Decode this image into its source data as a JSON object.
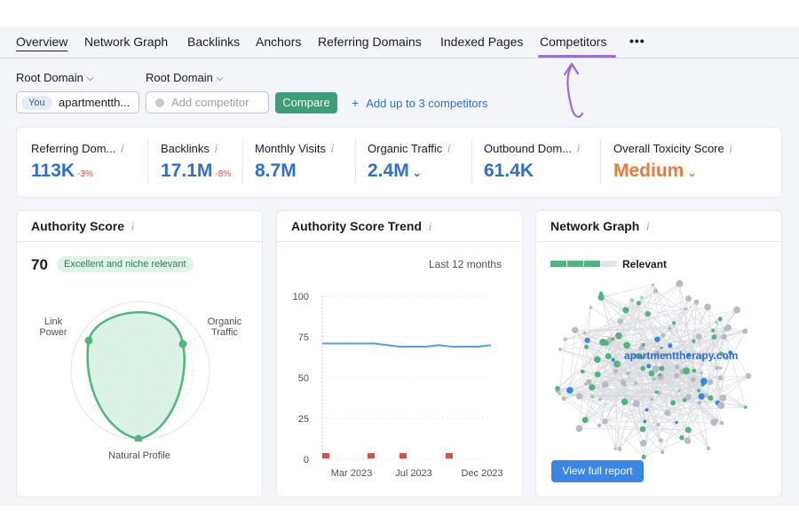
{
  "tabs": [
    "Overview",
    "Network Graph",
    "Backlinks",
    "Anchors",
    "Referring Domains",
    "Indexed Pages",
    "Competitors"
  ],
  "more_label": "•••",
  "filters": {
    "dropdown1": "Root Domain",
    "dropdown2": "Root Domain",
    "you_tag": "You",
    "domain_value": "apartmentth...",
    "competitor_placeholder": "Add competitor",
    "compare_label": "Compare",
    "add_link": "Add up to 3 competitors"
  },
  "metrics": [
    {
      "label": "Referring Dom...",
      "value": "113K",
      "change": "-3%"
    },
    {
      "label": "Backlinks",
      "value": "17.1M",
      "change": "-8%"
    },
    {
      "label": "Monthly Visits",
      "value": "8.7M",
      "change": ""
    },
    {
      "label": "Organic Traffic",
      "value": "2.4M",
      "change": ""
    },
    {
      "label": "Outbound Dom...",
      "value": "61.4K",
      "change": ""
    },
    {
      "label": "Overall Toxicity Score",
      "value": "Medium",
      "change": ""
    }
  ],
  "authority": {
    "title": "Authority Score",
    "score": "70",
    "badge": "Excellent and niche relevant",
    "labels": {
      "link_power": "Link\nPower",
      "organic_traffic": "Organic\nTraffic",
      "natural_profile": "Natural Profile"
    }
  },
  "trend": {
    "title": "Authority Score Trend",
    "period": "Last 12 months",
    "chart_data": {
      "type": "line",
      "yticks": [
        100,
        75,
        50,
        25,
        0
      ],
      "xticks": [
        "Mar 2023",
        "Jul 2023",
        "Dec 2023"
      ],
      "ylim": [
        0,
        100
      ],
      "series": [
        {
          "values": [
            71,
            71,
            71,
            71,
            71,
            70,
            69,
            69,
            69,
            70,
            69,
            69,
            69,
            70
          ]
        }
      ]
    }
  },
  "network": {
    "title": "Network Graph",
    "legend": "Relevant",
    "domain": "apartmenttherapy.com",
    "button": "View full report"
  },
  "colors": {
    "accent": "#2f6ed3",
    "green": "#3f9d7a",
    "orange": "#e97b3b",
    "purple": "#9b6ce0"
  },
  "info_icon": "i"
}
